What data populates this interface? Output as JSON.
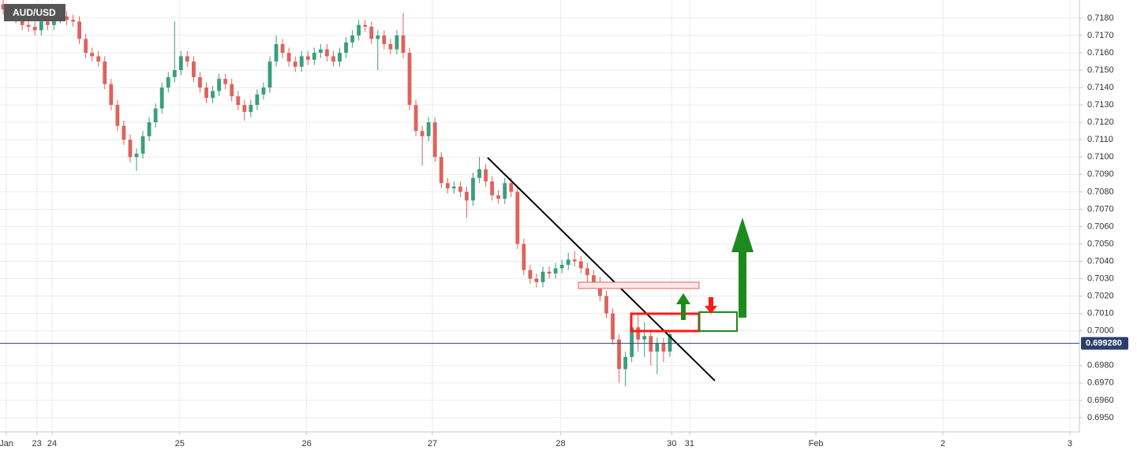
{
  "chart_data": {
    "type": "candlestick",
    "title": "AUD/USD",
    "up_color": "#3b9e7e",
    "down_color": "#e0625b",
    "grid": true,
    "xlim": [
      -0.5,
      169.5
    ],
    "xticks": [
      {
        "value": 0.5,
        "label": "Jan"
      },
      {
        "value": 5.3,
        "label": "23"
      },
      {
        "value": 7.7,
        "label": "24"
      },
      {
        "value": 27.8,
        "label": "25"
      },
      {
        "value": 47.8,
        "label": "26"
      },
      {
        "value": 67.6,
        "label": "27"
      },
      {
        "value": 87.8,
        "label": "28"
      },
      {
        "value": 105.3,
        "label": "30"
      },
      {
        "value": 108.1,
        "label": "31"
      },
      {
        "value": 128,
        "label": "Feb"
      },
      {
        "value": 148,
        "label": "2"
      },
      {
        "value": 168,
        "label": "3"
      }
    ],
    "ylim": [
      0.69418,
      0.71904
    ],
    "yticks": [
      {
        "value": 0.695,
        "label": "0.6950"
      },
      {
        "value": 0.696,
        "label": "0.6960"
      },
      {
        "value": 0.697,
        "label": "0.6970"
      },
      {
        "value": 0.698,
        "label": "0.6980"
      },
      {
        "value": 0.7,
        "label": "0.7000"
      },
      {
        "value": 0.701,
        "label": "0.7010"
      },
      {
        "value": 0.702,
        "label": "0.7020"
      },
      {
        "value": 0.703,
        "label": "0.7030"
      },
      {
        "value": 0.704,
        "label": "0.7040"
      },
      {
        "value": 0.705,
        "label": "0.7050"
      },
      {
        "value": 0.706,
        "label": "0.7060"
      },
      {
        "value": 0.707,
        "label": "0.7070"
      },
      {
        "value": 0.708,
        "label": "0.7080"
      },
      {
        "value": 0.709,
        "label": "0.7090"
      },
      {
        "value": 0.71,
        "label": "0.7100"
      },
      {
        "value": 0.711,
        "label": "0.7110"
      },
      {
        "value": 0.712,
        "label": "0.7120"
      },
      {
        "value": 0.713,
        "label": "0.7130"
      },
      {
        "value": 0.714,
        "label": "0.7140"
      },
      {
        "value": 0.715,
        "label": "0.7150"
      },
      {
        "value": 0.716,
        "label": "0.7160"
      },
      {
        "value": 0.717,
        "label": "0.7170"
      },
      {
        "value": 0.718,
        "label": "0.7180"
      }
    ],
    "last_price": {
      "value": 0.69928,
      "label": "0.699280"
    },
    "open": [
      0.7188,
      0.7185,
      0.7182,
      0.718,
      0.7176,
      0.7175,
      0.7173,
      0.7178,
      0.7176,
      0.718,
      0.7181,
      0.7179,
      0.7178,
      0.7168,
      0.716,
      0.7158,
      0.7155,
      0.7142,
      0.713,
      0.7118,
      0.711,
      0.71,
      0.7102,
      0.7112,
      0.712,
      0.7128,
      0.714,
      0.7146,
      0.715,
      0.7158,
      0.7155,
      0.7146,
      0.714,
      0.7134,
      0.7138,
      0.7145,
      0.7142,
      0.7135,
      0.713,
      0.7126,
      0.713,
      0.7136,
      0.714,
      0.7155,
      0.7165,
      0.716,
      0.7155,
      0.7152,
      0.7158,
      0.7156,
      0.716,
      0.7162,
      0.7158,
      0.7155,
      0.716,
      0.7166,
      0.717,
      0.7176,
      0.7175,
      0.7168,
      0.717,
      0.7165,
      0.7162,
      0.717,
      0.716,
      0.713,
      0.7115,
      0.7112,
      0.712,
      0.71,
      0.7085,
      0.7082,
      0.7083,
      0.708,
      0.7075,
      0.7088,
      0.7093,
      0.7086,
      0.7078,
      0.7076,
      0.7085,
      0.708,
      0.705,
      0.7035,
      0.703,
      0.7028,
      0.7034,
      0.7033,
      0.7036,
      0.7038,
      0.7041,
      0.704,
      0.7036,
      0.7032,
      0.7028,
      0.702,
      0.701,
      0.6995,
      0.6978,
      0.6985,
      0.7002,
      0.6995,
      0.6997,
      0.6988,
      0.6993,
      0.6988
    ],
    "high": [
      0.7191,
      0.7188,
      0.7185,
      0.7183,
      0.7179,
      0.7178,
      0.7181,
      0.7181,
      0.7183,
      0.7184,
      0.7184,
      0.7182,
      0.7181,
      0.7171,
      0.7163,
      0.7161,
      0.7158,
      0.7145,
      0.7133,
      0.7121,
      0.7113,
      0.7105,
      0.7115,
      0.7123,
      0.7131,
      0.7143,
      0.7149,
      0.7178,
      0.7161,
      0.7161,
      0.7158,
      0.7149,
      0.7143,
      0.7141,
      0.7148,
      0.7148,
      0.7145,
      0.7138,
      0.7133,
      0.7133,
      0.7139,
      0.7143,
      0.7158,
      0.717,
      0.7168,
      0.7163,
      0.7158,
      0.7161,
      0.7161,
      0.7163,
      0.7165,
      0.7165,
      0.7161,
      0.7163,
      0.7169,
      0.7173,
      0.7179,
      0.7179,
      0.7178,
      0.7173,
      0.7173,
      0.7168,
      0.7173,
      0.7183,
      0.7163,
      0.7133,
      0.7118,
      0.7123,
      0.7123,
      0.7103,
      0.7088,
      0.7086,
      0.7086,
      0.7083,
      0.7091,
      0.71,
      0.7096,
      0.7089,
      0.7081,
      0.7088,
      0.7088,
      0.7083,
      0.7053,
      0.7038,
      0.7033,
      0.7037,
      0.7037,
      0.7039,
      0.7041,
      0.7045,
      0.7046,
      0.7043,
      0.7039,
      0.7035,
      0.7031,
      0.7023,
      0.7013,
      0.6998,
      0.6988,
      0.7005,
      0.701,
      0.7005,
      0.7,
      0.6996,
      0.6996,
      0.7
    ],
    "low": [
      0.7182,
      0.7179,
      0.7177,
      0.7173,
      0.7172,
      0.717,
      0.717,
      0.7173,
      0.7173,
      0.7177,
      0.7176,
      0.7175,
      0.7165,
      0.7157,
      0.7155,
      0.7152,
      0.7139,
      0.7127,
      0.7115,
      0.7107,
      0.7097,
      0.7092,
      0.7099,
      0.7109,
      0.7117,
      0.7125,
      0.7137,
      0.7143,
      0.7147,
      0.7152,
      0.7143,
      0.7137,
      0.7131,
      0.7131,
      0.7135,
      0.7139,
      0.7132,
      0.7127,
      0.7121,
      0.7123,
      0.7127,
      0.7133,
      0.7137,
      0.7152,
      0.7157,
      0.7152,
      0.7149,
      0.7149,
      0.7153,
      0.7153,
      0.7157,
      0.7155,
      0.7152,
      0.7152,
      0.7157,
      0.7163,
      0.7167,
      0.7172,
      0.7165,
      0.715,
      0.7162,
      0.7159,
      0.7159,
      0.7157,
      0.7127,
      0.7112,
      0.7095,
      0.7109,
      0.7097,
      0.7082,
      0.7079,
      0.7079,
      0.7077,
      0.7065,
      0.7072,
      0.7085,
      0.7083,
      0.7075,
      0.7073,
      0.7073,
      0.7077,
      0.7047,
      0.7032,
      0.7027,
      0.7025,
      0.7025,
      0.703,
      0.703,
      0.7033,
      0.7035,
      0.7037,
      0.7033,
      0.7026,
      0.7025,
      0.7017,
      0.7007,
      0.6992,
      0.697,
      0.6968,
      0.6982,
      0.6988,
      0.6985,
      0.698,
      0.6975,
      0.6982,
      0.6985
    ],
    "close": [
      0.7185,
      0.7182,
      0.718,
      0.7176,
      0.7175,
      0.7173,
      0.7178,
      0.7176,
      0.718,
      0.7181,
      0.7179,
      0.7178,
      0.7168,
      0.716,
      0.7158,
      0.7155,
      0.7142,
      0.713,
      0.7118,
      0.711,
      0.71,
      0.7102,
      0.7112,
      0.712,
      0.7128,
      0.714,
      0.7146,
      0.715,
      0.7158,
      0.7155,
      0.7146,
      0.714,
      0.7134,
      0.7138,
      0.7145,
      0.7142,
      0.7135,
      0.713,
      0.7126,
      0.713,
      0.7136,
      0.714,
      0.7155,
      0.7165,
      0.716,
      0.7155,
      0.7152,
      0.7158,
      0.7156,
      0.716,
      0.7162,
      0.7158,
      0.7155,
      0.716,
      0.7166,
      0.717,
      0.7176,
      0.7175,
      0.7168,
      0.717,
      0.7165,
      0.7162,
      0.717,
      0.716,
      0.713,
      0.7115,
      0.7112,
      0.712,
      0.71,
      0.7085,
      0.7082,
      0.7083,
      0.708,
      0.7075,
      0.7088,
      0.7093,
      0.7086,
      0.7078,
      0.7076,
      0.7085,
      0.708,
      0.705,
      0.7035,
      0.703,
      0.7028,
      0.7034,
      0.7033,
      0.7036,
      0.7038,
      0.7041,
      0.704,
      0.7036,
      0.7032,
      0.7028,
      0.702,
      0.701,
      0.6995,
      0.6978,
      0.6985,
      0.7002,
      0.6995,
      0.6997,
      0.6988,
      0.6993,
      0.6988,
      0.6998
    ]
  }
}
